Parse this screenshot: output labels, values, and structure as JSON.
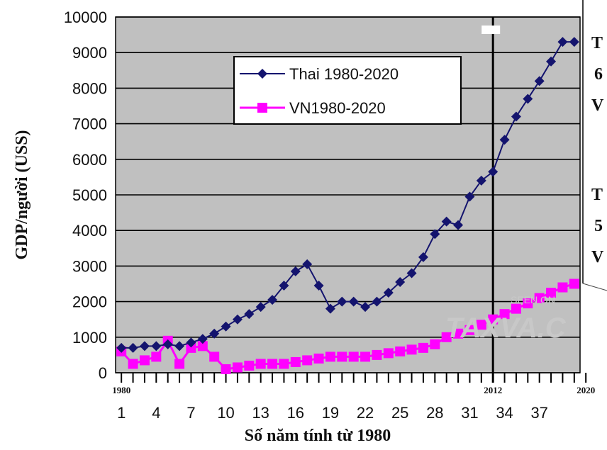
{
  "chart_data": {
    "type": "line",
    "title": "",
    "xlabel": "Số năm tính từ 1980",
    "ylabel": "GDP/người (USS)",
    "ylim": [
      0,
      10000
    ],
    "yticks": [
      0,
      1000,
      2000,
      3000,
      4000,
      5000,
      6000,
      7000,
      8000,
      9000,
      10000
    ],
    "xlim": [
      0.5,
      40.5
    ],
    "xticks": [
      1,
      4,
      7,
      10,
      13,
      16,
      19,
      22,
      25,
      28,
      31,
      34,
      37
    ],
    "year_labels": [
      {
        "x": 1,
        "label": "1980"
      },
      {
        "x": 33,
        "label": "2012"
      },
      {
        "x": 41,
        "label": "2020"
      }
    ],
    "vertical_line_x": 33,
    "grid": true,
    "legend_position": "top-center",
    "colors": {
      "thai": "#14146e",
      "vn": "#ff00ff",
      "plot_bg": "#c0c0c0"
    },
    "series": [
      {
        "name": "Thai 1980-2020",
        "marker": "diamond",
        "x": [
          1,
          2,
          3,
          4,
          5,
          6,
          7,
          8,
          9,
          10,
          11,
          12,
          13,
          14,
          15,
          16,
          17,
          18,
          19,
          20,
          21,
          22,
          23,
          24,
          25,
          26,
          27,
          28,
          29,
          30,
          31,
          32,
          33,
          34,
          35,
          36,
          37,
          38,
          39,
          40
        ],
        "values": [
          700,
          700,
          750,
          750,
          800,
          750,
          850,
          950,
          1100,
          1300,
          1500,
          1650,
          1850,
          2050,
          2450,
          2850,
          3050,
          2450,
          1800,
          2000,
          2000,
          1850,
          2000,
          2250,
          2550,
          2800,
          3250,
          3900,
          4250,
          4150,
          4950,
          5400,
          5650,
          6550,
          7200,
          7700,
          8200,
          8750,
          9300,
          9300
        ]
      },
      {
        "name": "VN1980-2020",
        "marker": "square",
        "x": [
          1,
          2,
          3,
          4,
          5,
          6,
          7,
          8,
          9,
          10,
          11,
          12,
          13,
          14,
          15,
          16,
          17,
          18,
          19,
          20,
          21,
          22,
          23,
          24,
          25,
          26,
          27,
          28,
          29,
          30,
          31,
          32,
          33,
          34,
          35,
          36,
          37,
          38,
          39,
          40
        ],
        "values": [
          600,
          250,
          350,
          450,
          900,
          250,
          700,
          750,
          450,
          100,
          150,
          200,
          250,
          250,
          250,
          300,
          350,
          400,
          450,
          450,
          450,
          450,
          500,
          550,
          600,
          650,
          700,
          800,
          1000,
          1100,
          1200,
          1350,
          1500,
          1650,
          1800,
          1950,
          2100,
          2250,
          2400,
          2500
        ]
      }
    ]
  },
  "side_panel": {
    "lines": [
      "T",
      "6",
      "V",
      "T",
      "5",
      "V"
    ]
  },
  "watermark": {
    "line1": "SEEN ON",
    "line2": "TAXVA.C"
  }
}
